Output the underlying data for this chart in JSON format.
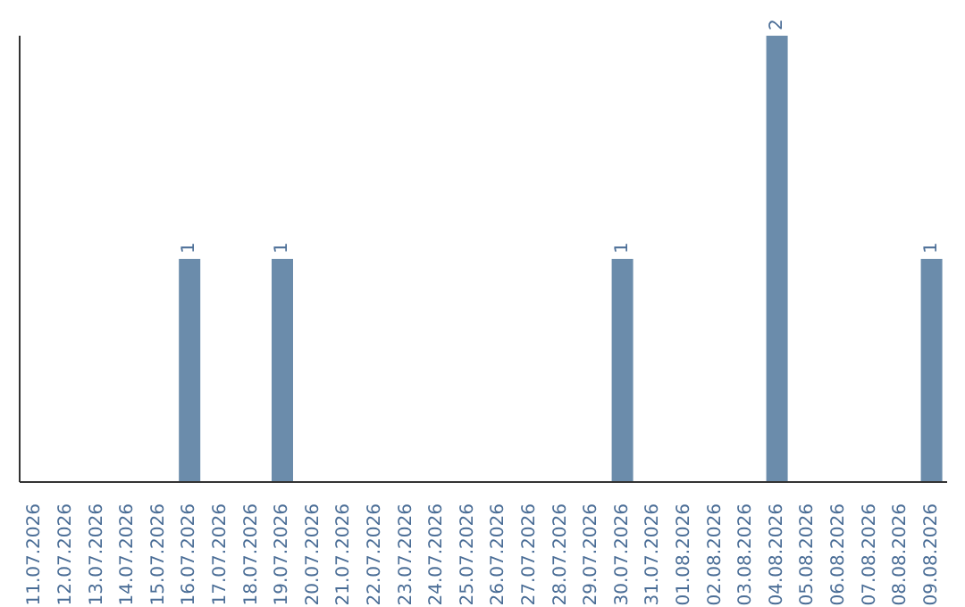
{
  "chart_data": {
    "type": "bar",
    "categories": [
      "11.07.2026",
      "12.07.2026",
      "13.07.2026",
      "14.07.2026",
      "15.07.2026",
      "16.07.2026",
      "17.07.2026",
      "18.07.2026",
      "19.07.2026",
      "20.07.2026",
      "21.07.2026",
      "22.07.2026",
      "23.07.2026",
      "24.07.2026",
      "25.07.2026",
      "26.07.2026",
      "27.07.2026",
      "28.07.2026",
      "29.07.2026",
      "30.07.2026",
      "31.07.2026",
      "01.08.2026",
      "02.08.2026",
      "03.08.2026",
      "04.08.2026",
      "05.08.2026",
      "06.08.2026",
      "07.08.2026",
      "08.08.2026",
      "09.08.2026"
    ],
    "values": [
      0,
      0,
      0,
      0,
      0,
      1,
      0,
      0,
      1,
      0,
      0,
      0,
      0,
      0,
      0,
      0,
      0,
      0,
      0,
      1,
      0,
      0,
      0,
      0,
      2,
      0,
      0,
      0,
      0,
      1
    ],
    "value_labels": [
      null,
      null,
      null,
      null,
      null,
      "1",
      null,
      null,
      "1",
      null,
      null,
      null,
      null,
      null,
      null,
      null,
      null,
      null,
      null,
      "1",
      null,
      null,
      null,
      null,
      "2",
      null,
      null,
      null,
      null,
      "1"
    ],
    "color": "#6b8cab",
    "tick_labels": "x"
  }
}
